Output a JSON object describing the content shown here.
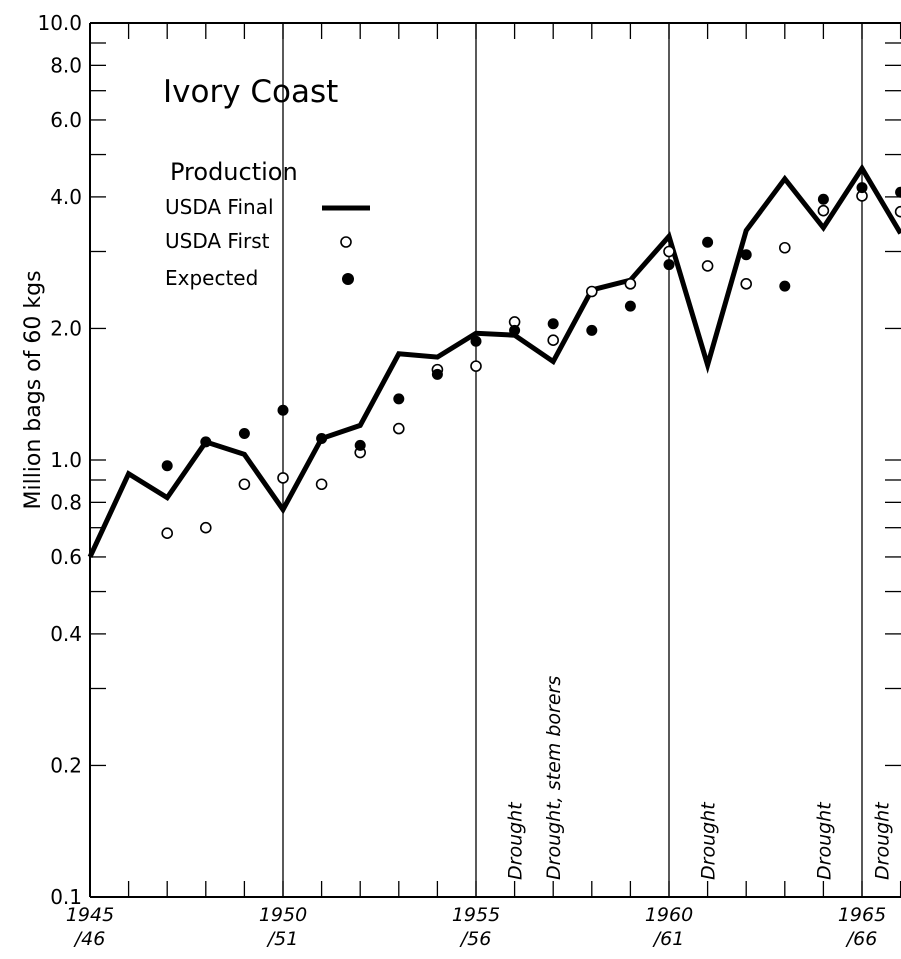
{
  "chart_data": {
    "type": "line",
    "title": "Ivory Coast",
    "ylabel": "Million bags of 60 kgs",
    "xlabel": "",
    "y_scale": "log",
    "ylim": [
      0.1,
      10.0
    ],
    "xlim": [
      1945,
      1966
    ],
    "grid": false,
    "legend_title": "Production",
    "legend_placement": "top-left",
    "y_ticks": [
      {
        "value": 10.0,
        "label": "10.0"
      },
      {
        "value": 8.0,
        "label": "8.0"
      },
      {
        "value": 6.0,
        "label": "6.0"
      },
      {
        "value": 4.0,
        "label": "4.0"
      },
      {
        "value": 2.0,
        "label": "2.0"
      },
      {
        "value": 1.0,
        "label": "1.0"
      },
      {
        "value": 0.8,
        "label": "0.8"
      },
      {
        "value": 0.6,
        "label": "0.6"
      },
      {
        "value": 0.4,
        "label": "0.4"
      },
      {
        "value": 0.2,
        "label": "0.2"
      },
      {
        "value": 0.1,
        "label": "0.1"
      }
    ],
    "x_ticks": [
      {
        "value": 1945,
        "label1": "1945",
        "label2": "/46"
      },
      {
        "value": 1950,
        "label1": "1950",
        "label2": "/51"
      },
      {
        "value": 1955,
        "label1": "1955",
        "label2": "/56"
      },
      {
        "value": 1960,
        "label1": "1960",
        "label2": "/61"
      },
      {
        "value": 1965,
        "label1": "1965",
        "label2": "/66"
      }
    ],
    "vertical_lines": [
      1950,
      1955,
      1960,
      1965
    ],
    "series": [
      {
        "name": "USDA Final",
        "style": "line",
        "color": "#000000",
        "x": [
          1945,
          1946,
          1947,
          1948,
          1949,
          1950,
          1951,
          1952,
          1953,
          1954,
          1955,
          1956,
          1957,
          1958,
          1959,
          1960,
          1961,
          1962,
          1963,
          1964,
          1965,
          1966
        ],
        "y": [
          0.6,
          0.93,
          0.82,
          1.1,
          1.03,
          0.77,
          1.12,
          1.2,
          1.75,
          1.72,
          1.95,
          1.93,
          1.68,
          2.45,
          2.58,
          3.25,
          1.65,
          3.35,
          4.4,
          3.4,
          4.65,
          3.3
        ]
      },
      {
        "name": "USDA First",
        "style": "open-circle",
        "color": "#000000",
        "x": [
          1947,
          1948,
          1949,
          1950,
          1951,
          1952,
          1953,
          1954,
          1955,
          1956,
          1957,
          1958,
          1959,
          1960,
          1961,
          1962,
          1963,
          1964,
          1965,
          1966
        ],
        "y": [
          0.68,
          0.7,
          0.88,
          0.91,
          0.88,
          1.04,
          1.18,
          1.61,
          1.64,
          2.07,
          1.88,
          2.43,
          2.53,
          3.0,
          2.78,
          2.53,
          3.06,
          3.72,
          4.02,
          3.7
        ]
      },
      {
        "name": "Expected",
        "style": "filled-circle",
        "color": "#000000",
        "x": [
          1947,
          1948,
          1949,
          1950,
          1951,
          1952,
          1953,
          1954,
          1955,
          1956,
          1957,
          1958,
          1959,
          1960,
          1961,
          1962,
          1963,
          1964,
          1965,
          1966
        ],
        "y": [
          0.97,
          1.1,
          1.15,
          1.3,
          1.12,
          1.08,
          1.38,
          1.57,
          1.87,
          1.98,
          2.05,
          1.98,
          2.25,
          2.8,
          3.15,
          2.95,
          2.5,
          3.95,
          4.2,
          4.1
        ]
      }
    ],
    "annotations": [
      {
        "text": "Drought",
        "x": 1956
      },
      {
        "text": "Drought,  stem borers",
        "x": 1957
      },
      {
        "text": "Drought",
        "x": 1961
      },
      {
        "text": "Drought",
        "x": 1964
      },
      {
        "text": "Drought",
        "x": 1965.5
      }
    ]
  }
}
